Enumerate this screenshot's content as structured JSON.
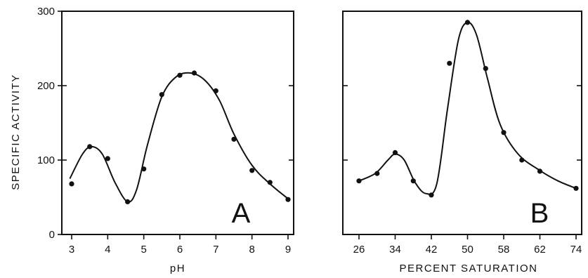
{
  "chart_data": [
    {
      "type": "scatter",
      "panel_label": "A",
      "xlabel": "pH",
      "ylabel": "SPECIFIC ACTIVITY",
      "xlim": [
        3,
        9
      ],
      "ylim": [
        0,
        300
      ],
      "x_ticks": [
        "3",
        "4",
        "5",
        "6",
        "7",
        "8",
        "9"
      ],
      "y_ticks": [
        "0",
        "100",
        "200",
        "300"
      ],
      "points": [
        {
          "x": 3.0,
          "y": 68
        },
        {
          "x": 3.5,
          "y": 118
        },
        {
          "x": 4.0,
          "y": 102
        },
        {
          "x": 4.55,
          "y": 44
        },
        {
          "x": 5.0,
          "y": 88
        },
        {
          "x": 5.5,
          "y": 188
        },
        {
          "x": 6.0,
          "y": 214
        },
        {
          "x": 6.4,
          "y": 217
        },
        {
          "x": 7.0,
          "y": 193
        },
        {
          "x": 7.5,
          "y": 128
        },
        {
          "x": 8.0,
          "y": 86
        },
        {
          "x": 8.5,
          "y": 70
        },
        {
          "x": 9.0,
          "y": 47
        }
      ],
      "curve": [
        {
          "x": 2.95,
          "y": 75
        },
        {
          "x": 3.3,
          "y": 108
        },
        {
          "x": 3.55,
          "y": 118
        },
        {
          "x": 3.85,
          "y": 108
        },
        {
          "x": 4.2,
          "y": 70
        },
        {
          "x": 4.55,
          "y": 44
        },
        {
          "x": 4.8,
          "y": 60
        },
        {
          "x": 5.1,
          "y": 120
        },
        {
          "x": 5.5,
          "y": 185
        },
        {
          "x": 5.9,
          "y": 212
        },
        {
          "x": 6.3,
          "y": 217
        },
        {
          "x": 6.7,
          "y": 207
        },
        {
          "x": 7.1,
          "y": 180
        },
        {
          "x": 7.5,
          "y": 135
        },
        {
          "x": 8.0,
          "y": 93
        },
        {
          "x": 8.5,
          "y": 68
        },
        {
          "x": 9.0,
          "y": 48
        }
      ]
    },
    {
      "type": "scatter",
      "panel_label": "B",
      "xlabel": "PERCENT SATURATION",
      "ylabel": "",
      "xlim": [
        0,
        6
      ],
      "ylim": [
        0,
        300
      ],
      "x_ticks": [
        "26",
        "34",
        "42",
        "50",
        "58",
        "62",
        "74"
      ],
      "y_ticks": [],
      "points": [
        {
          "x": 0.0,
          "y": 72
        },
        {
          "x": 0.5,
          "y": 82
        },
        {
          "x": 1.0,
          "y": 110
        },
        {
          "x": 1.5,
          "y": 72
        },
        {
          "x": 2.0,
          "y": 53
        },
        {
          "x": 2.5,
          "y": 230
        },
        {
          "x": 3.0,
          "y": 285
        },
        {
          "x": 3.5,
          "y": 223
        },
        {
          "x": 4.0,
          "y": 137
        },
        {
          "x": 4.5,
          "y": 100
        },
        {
          "x": 5.0,
          "y": 85
        },
        {
          "x": 6.0,
          "y": 62
        }
      ],
      "curve": [
        {
          "x": 0.0,
          "y": 72
        },
        {
          "x": 0.45,
          "y": 82
        },
        {
          "x": 0.8,
          "y": 100
        },
        {
          "x": 1.0,
          "y": 108
        },
        {
          "x": 1.25,
          "y": 100
        },
        {
          "x": 1.55,
          "y": 70
        },
        {
          "x": 1.85,
          "y": 55
        },
        {
          "x": 2.15,
          "y": 68
        },
        {
          "x": 2.45,
          "y": 170
        },
        {
          "x": 2.75,
          "y": 262
        },
        {
          "x": 3.0,
          "y": 285
        },
        {
          "x": 3.25,
          "y": 268
        },
        {
          "x": 3.55,
          "y": 210
        },
        {
          "x": 3.9,
          "y": 148
        },
        {
          "x": 4.4,
          "y": 108
        },
        {
          "x": 5.0,
          "y": 86
        },
        {
          "x": 5.5,
          "y": 72
        },
        {
          "x": 6.0,
          "y": 62
        }
      ]
    }
  ]
}
